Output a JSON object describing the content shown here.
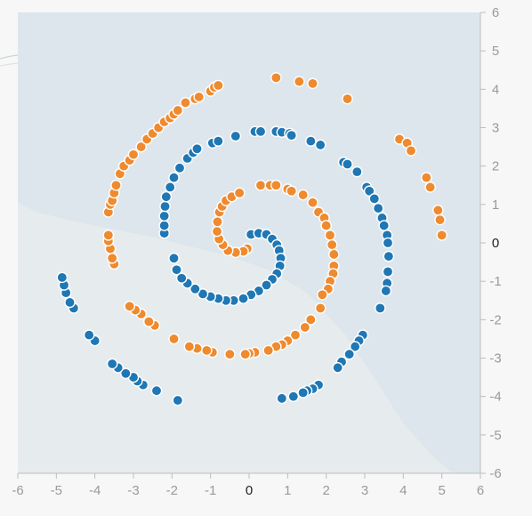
{
  "chart_data": {
    "type": "scatter",
    "title": "",
    "xlabel": "",
    "ylabel": "",
    "xlim": [
      -6,
      6
    ],
    "ylim": [
      -6,
      6
    ],
    "x_ticks": [
      "-6",
      "-5",
      "-4",
      "-3",
      "-2",
      "-1",
      "0",
      "1",
      "2",
      "3",
      "4",
      "5",
      "6"
    ],
    "y_ticks": [
      "6",
      "5",
      "4",
      "3",
      "2",
      "1",
      "0",
      "-1",
      "-2",
      "-3",
      "-4",
      "-5",
      "-6"
    ],
    "grid": false,
    "background": {
      "region_a_color": "#dde6ec",
      "region_b_color": "#e6ebee",
      "boundary": [
        [
          -6,
          1.05
        ],
        [
          -5.5,
          0.8
        ],
        [
          -4.5,
          0.55
        ],
        [
          -3.5,
          0.35
        ],
        [
          -2.5,
          0.15
        ],
        [
          -1.5,
          -0.1
        ],
        [
          -0.5,
          -0.35
        ],
        [
          0.5,
          -0.7
        ],
        [
          1.5,
          -1.3
        ],
        [
          2.5,
          -2.4
        ],
        [
          3.3,
          -3.6
        ],
        [
          4.0,
          -4.7
        ],
        [
          4.8,
          -5.6
        ],
        [
          5.3,
          -6
        ]
      ]
    },
    "series": [
      {
        "color": "#1f77b4",
        "points": [
          [
            0.05,
            0.22
          ],
          [
            0.25,
            0.25
          ],
          [
            0.45,
            0.22
          ],
          [
            0.6,
            0.1
          ],
          [
            0.72,
            -0.05
          ],
          [
            0.78,
            -0.2
          ],
          [
            0.82,
            -0.4
          ],
          [
            0.8,
            -0.6
          ],
          [
            0.72,
            -0.8
          ],
          [
            0.6,
            -0.95
          ],
          [
            0.45,
            -1.1
          ],
          [
            0.25,
            -1.25
          ],
          [
            0.05,
            -1.35
          ],
          [
            -0.15,
            -1.45
          ],
          [
            -0.4,
            -1.5
          ],
          [
            -0.6,
            -1.5
          ],
          [
            -0.8,
            -1.45
          ],
          [
            -1.0,
            -1.4
          ],
          [
            -1.2,
            -1.33
          ],
          [
            -1.4,
            -1.2
          ],
          [
            -1.6,
            -1.05
          ],
          [
            -1.75,
            -0.92
          ],
          [
            -1.88,
            -0.7
          ],
          [
            -1.95,
            -0.4
          ],
          [
            -2.2,
            0.25
          ],
          [
            -2.2,
            0.45
          ],
          [
            -2.2,
            0.7
          ],
          [
            -2.18,
            0.95
          ],
          [
            -2.15,
            1.2
          ],
          [
            -2.05,
            1.45
          ],
          [
            -1.95,
            1.7
          ],
          [
            -1.8,
            1.95
          ],
          [
            -1.6,
            2.2
          ],
          [
            -1.45,
            2.35
          ],
          [
            -1.35,
            2.45
          ],
          [
            -0.95,
            2.6
          ],
          [
            -0.8,
            2.65
          ],
          [
            -0.35,
            2.78
          ],
          [
            0.15,
            2.9
          ],
          [
            0.3,
            2.9
          ],
          [
            0.7,
            2.9
          ],
          [
            0.85,
            2.88
          ],
          [
            1.05,
            2.85
          ],
          [
            1.1,
            2.8
          ],
          [
            1.6,
            2.65
          ],
          [
            1.85,
            2.55
          ],
          [
            2.45,
            2.1
          ],
          [
            2.55,
            2.05
          ],
          [
            2.8,
            1.85
          ],
          [
            3.05,
            1.45
          ],
          [
            3.12,
            1.35
          ],
          [
            3.25,
            1.15
          ],
          [
            3.35,
            0.9
          ],
          [
            3.45,
            0.65
          ],
          [
            3.5,
            0.45
          ],
          [
            3.58,
            0.2
          ],
          [
            3.6,
            0.0
          ],
          [
            3.62,
            -0.35
          ],
          [
            3.6,
            -0.75
          ],
          [
            3.58,
            -1.05
          ],
          [
            3.55,
            -1.25
          ],
          [
            3.4,
            -1.7
          ],
          [
            2.95,
            -2.4
          ],
          [
            2.85,
            -2.55
          ],
          [
            2.75,
            -2.7
          ],
          [
            2.6,
            -2.9
          ],
          [
            2.4,
            -3.1
          ],
          [
            2.3,
            -3.25
          ],
          [
            1.8,
            -3.7
          ],
          [
            1.65,
            -3.8
          ],
          [
            1.5,
            -3.85
          ],
          [
            1.4,
            -3.9
          ],
          [
            1.15,
            -4.0
          ],
          [
            0.85,
            -4.05
          ],
          [
            -1.85,
            -4.1
          ],
          [
            -2.4,
            -3.85
          ],
          [
            -2.75,
            -3.7
          ],
          [
            -2.9,
            -3.6
          ],
          [
            -3.0,
            -3.5
          ],
          [
            -3.2,
            -3.4
          ],
          [
            -3.4,
            -3.25
          ],
          [
            -3.55,
            -3.15
          ],
          [
            -4.0,
            -2.55
          ],
          [
            -4.15,
            -2.4
          ],
          [
            -4.55,
            -1.7
          ],
          [
            -4.65,
            -1.55
          ],
          [
            -4.75,
            -1.3
          ],
          [
            -4.8,
            -1.1
          ],
          [
            -4.85,
            -0.9
          ]
        ]
      },
      {
        "color": "#ef8a2e",
        "points": [
          [
            -0.05,
            -0.15
          ],
          [
            -0.15,
            -0.22
          ],
          [
            -0.35,
            -0.25
          ],
          [
            -0.55,
            -0.2
          ],
          [
            -0.68,
            -0.05
          ],
          [
            -0.78,
            0.1
          ],
          [
            -0.83,
            0.3
          ],
          [
            -0.82,
            0.55
          ],
          [
            -0.77,
            0.8
          ],
          [
            -0.7,
            0.95
          ],
          [
            -0.6,
            1.1
          ],
          [
            -0.45,
            1.2
          ],
          [
            -0.25,
            1.3
          ],
          [
            0.3,
            1.5
          ],
          [
            0.55,
            1.5
          ],
          [
            0.7,
            1.5
          ],
          [
            1.0,
            1.4
          ],
          [
            1.1,
            1.35
          ],
          [
            1.4,
            1.25
          ],
          [
            1.65,
            1.05
          ],
          [
            1.8,
            0.8
          ],
          [
            1.95,
            0.65
          ],
          [
            2.0,
            0.45
          ],
          [
            2.1,
            0.2
          ],
          [
            2.15,
            -0.05
          ],
          [
            2.2,
            -0.3
          ],
          [
            2.2,
            -0.6
          ],
          [
            2.18,
            -0.8
          ],
          [
            2.1,
            -1.0
          ],
          [
            2.05,
            -1.2
          ],
          [
            1.9,
            -1.35
          ],
          [
            1.85,
            -1.7
          ],
          [
            1.6,
            -2.0
          ],
          [
            1.45,
            -2.2
          ],
          [
            1.2,
            -2.4
          ],
          [
            1.0,
            -2.55
          ],
          [
            0.85,
            -2.65
          ],
          [
            0.7,
            -2.7
          ],
          [
            0.5,
            -2.8
          ],
          [
            0.15,
            -2.85
          ],
          [
            0.0,
            -2.88
          ],
          [
            -0.1,
            -2.9
          ],
          [
            -0.5,
            -2.9
          ],
          [
            -0.95,
            -2.85
          ],
          [
            -1.1,
            -2.8
          ],
          [
            -1.35,
            -2.75
          ],
          [
            -1.55,
            -2.7
          ],
          [
            -1.95,
            -2.5
          ],
          [
            -2.45,
            -2.15
          ],
          [
            -2.6,
            -2.05
          ],
          [
            -2.8,
            -1.85
          ],
          [
            -2.95,
            -1.75
          ],
          [
            -3.1,
            -1.65
          ],
          [
            -3.5,
            -0.55
          ],
          [
            -3.55,
            -0.4
          ],
          [
            -3.6,
            -0.15
          ],
          [
            -3.65,
            0.05
          ],
          [
            -3.65,
            0.2
          ],
          [
            -3.65,
            0.8
          ],
          [
            -3.6,
            1.0
          ],
          [
            -3.55,
            1.1
          ],
          [
            -3.5,
            1.3
          ],
          [
            -3.45,
            1.5
          ],
          [
            -3.35,
            1.8
          ],
          [
            -3.25,
            2.0
          ],
          [
            -3.1,
            2.15
          ],
          [
            -3.0,
            2.3
          ],
          [
            -2.8,
            2.5
          ],
          [
            -2.65,
            2.7
          ],
          [
            -2.5,
            2.85
          ],
          [
            -2.35,
            3.0
          ],
          [
            -2.2,
            3.15
          ],
          [
            -2.05,
            3.25
          ],
          [
            -1.95,
            3.35
          ],
          [
            -1.85,
            3.45
          ],
          [
            -1.65,
            3.65
          ],
          [
            -1.4,
            3.75
          ],
          [
            -1.3,
            3.8
          ],
          [
            -1.0,
            3.95
          ],
          [
            -0.9,
            4.05
          ],
          [
            -0.8,
            4.1
          ],
          [
            0.7,
            4.3
          ],
          [
            1.3,
            4.2
          ],
          [
            1.65,
            4.15
          ],
          [
            2.55,
            3.75
          ],
          [
            3.9,
            2.7
          ],
          [
            4.1,
            2.6
          ],
          [
            4.2,
            2.4
          ],
          [
            4.6,
            1.7
          ],
          [
            4.7,
            1.45
          ],
          [
            4.9,
            0.85
          ],
          [
            4.95,
            0.6
          ],
          [
            5.0,
            0.2
          ]
        ]
      }
    ]
  }
}
